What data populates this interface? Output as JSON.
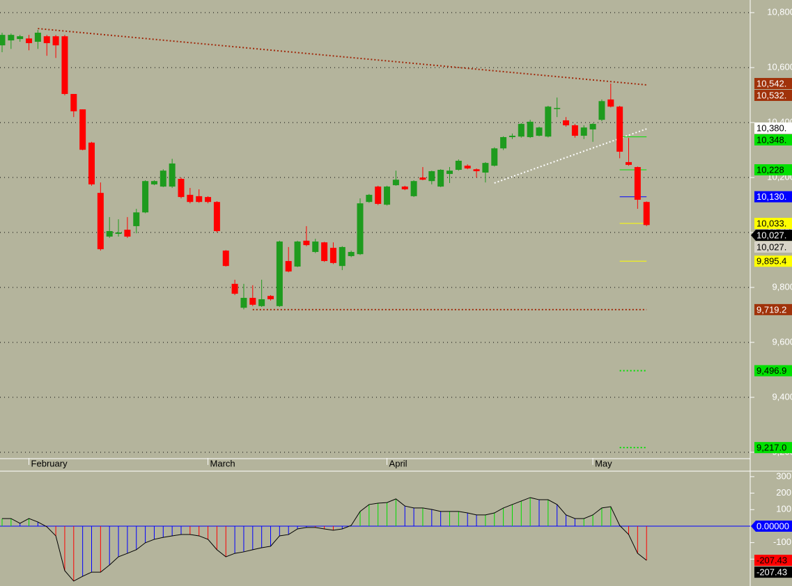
{
  "chart_data": [
    {
      "type": "candlestick",
      "categories": [
        null,
        null,
        null,
        "February",
        null,
        null,
        null,
        null,
        null,
        null,
        null,
        null,
        null,
        null,
        null,
        null,
        null,
        null,
        null,
        null,
        null,
        null,
        null,
        "March",
        null,
        null,
        null,
        null,
        null,
        null,
        null,
        null,
        null,
        null,
        null,
        null,
        null,
        null,
        null,
        null,
        null,
        null,
        null,
        "April",
        null,
        null,
        null,
        null,
        null,
        null,
        null,
        null,
        null,
        null,
        null,
        null,
        null,
        null,
        null,
        null,
        null,
        null,
        null,
        null,
        null,
        null,
        "May",
        null,
        null,
        null,
        null,
        null,
        null
      ],
      "open": [
        10681,
        10699,
        10704,
        10706,
        10694,
        10714,
        10714,
        10714,
        10504,
        10448,
        10327,
        10144,
        9985,
        9995,
        10010,
        10023,
        10073,
        10175,
        10167,
        10167,
        10195,
        10137,
        10132,
        10129,
        10111,
        9934,
        9813,
        9726,
        9762,
        9732,
        9769,
        9732,
        9896,
        9876,
        9970,
        9929,
        9964,
        9944,
        9878,
        9914,
        9921,
        10111,
        10167,
        10101,
        10172,
        10167,
        10132,
        10200,
        10187,
        10167,
        10213,
        10228,
        10243,
        10230,
        10218,
        10243,
        10306,
        10347,
        10349,
        10347,
        10352,
        10349,
        10451,
        10408,
        10390,
        10352,
        10375,
        10410,
        10484,
        10458,
        10256,
        10238,
        10111
      ],
      "high": [
        10727,
        10724,
        10719,
        10719,
        10737,
        10719,
        10719,
        10719,
        10504,
        10448,
        10330,
        10182,
        10056,
        10048,
        10056,
        10086,
        10190,
        10190,
        10230,
        10268,
        10200,
        10162,
        10157,
        10132,
        10114,
        9936,
        9828,
        9813,
        9808,
        9828,
        9772,
        9970,
        9947,
        9970,
        10023,
        9977,
        9966,
        9964,
        9950,
        9934,
        10124,
        10140,
        10170,
        10170,
        10225,
        10170,
        10190,
        10238,
        10225,
        10230,
        10238,
        10266,
        10248,
        10233,
        10256,
        10310,
        10350,
        10360,
        10398,
        10410,
        10385,
        10461,
        10491,
        10420,
        10395,
        10390,
        10398,
        10484,
        10542,
        10461,
        10344,
        10240,
        10113
      ],
      "low": [
        10656,
        10668,
        10694,
        10663,
        10668,
        10643,
        10635,
        10499,
        10420,
        10299,
        10170,
        9934,
        9980,
        9985,
        9980,
        9997,
        10070,
        10172,
        10165,
        10162,
        10124,
        10106,
        10108,
        10106,
        10000,
        9876,
        9772,
        9720,
        9732,
        9729,
        9752,
        9729,
        9855,
        9874,
        9950,
        9925,
        9893,
        9885,
        9863,
        9910,
        9918,
        10108,
        10100,
        10098,
        10170,
        10154,
        10129,
        10190,
        10175,
        10165,
        10180,
        10225,
        10230,
        10200,
        10182,
        10240,
        10300,
        10340,
        10345,
        10344,
        10350,
        10346,
        10420,
        10385,
        10345,
        10340,
        10330,
        10405,
        10455,
        10270,
        10243,
        10086,
        10023
      ],
      "close": [
        10719,
        10719,
        10714,
        10689,
        10727,
        10689,
        10681,
        10504,
        10441,
        10301,
        10175,
        9939,
        10005,
        10000,
        9985,
        10073,
        10187,
        10187,
        10225,
        10251,
        10129,
        10111,
        10111,
        10111,
        10005,
        9878,
        9777,
        9762,
        9737,
        9757,
        9757,
        9967,
        9858,
        9967,
        9954,
        9967,
        9896,
        9889,
        9947,
        9929,
        10106,
        10137,
        10104,
        10167,
        10192,
        10157,
        10187,
        10192,
        10223,
        10228,
        10225,
        10261,
        10233,
        10223,
        10253,
        10306,
        10347,
        10352,
        10395,
        10403,
        10382,
        10458,
        10453,
        10390,
        10352,
        10382,
        10395,
        10478,
        10458,
        10294,
        10246,
        10119,
        10027
      ],
      "up_color": "#1e9b1e",
      "down_color": "#ff0000",
      "ylim": [
        9187,
        10846
      ],
      "yticks": [
        {
          "value": 9200,
          "label": "9,200"
        },
        {
          "value": 9400,
          "label": "9,400"
        },
        {
          "value": 9600,
          "label": "9,600"
        },
        {
          "value": 9800,
          "label": "9,800"
        },
        {
          "value": 10000,
          "label": "10,000"
        },
        {
          "value": 10200,
          "label": "10,200"
        },
        {
          "value": 10400,
          "label": "10,400"
        },
        {
          "value": 10600,
          "label": "10,600"
        },
        {
          "value": 10800,
          "label": "10,800"
        }
      ],
      "grid": true,
      "lines": [
        {
          "x": [
            4,
            72
          ],
          "values": [
            10742,
            10537
          ],
          "color": "#a0280a",
          "style": "dotted"
        },
        {
          "x": [
            55,
            72
          ],
          "values": [
            10180,
            10377
          ],
          "color": "#ffffff",
          "style": "dotted"
        },
        {
          "x": [
            28,
            72
          ],
          "values": [
            9719.2,
            9719.2
          ],
          "color": "#a0280a",
          "style": "dotted"
        },
        {
          "x": [
            69,
            72
          ],
          "values": [
            10348,
            10348
          ],
          "color": "#00e000",
          "style": "solid"
        },
        {
          "x": [
            69,
            72
          ],
          "values": [
            10228,
            10228
          ],
          "color": "#00e000",
          "style": "solid"
        },
        {
          "x": [
            69,
            72
          ],
          "values": [
            10130,
            10130
          ],
          "color": "#0000ff",
          "style": "solid"
        },
        {
          "x": [
            69,
            72
          ],
          "values": [
            10033,
            10033
          ],
          "color": "#ffff00",
          "style": "solid"
        },
        {
          "x": [
            69,
            72
          ],
          "values": [
            9895.4,
            9895.4
          ],
          "color": "#ffff00",
          "style": "solid"
        },
        {
          "x": [
            69,
            72
          ],
          "values": [
            9496.9,
            9496.9
          ],
          "color": "#00e000",
          "style": "dotted"
        },
        {
          "x": [
            69,
            72
          ],
          "values": [
            9217.0,
            9217.0
          ],
          "color": "#00e000",
          "style": "dotted"
        }
      ],
      "badges": [
        {
          "value": 10542,
          "label": "10,542.",
          "fill": "#a0320a",
          "text_color": "#ffffff"
        },
        {
          "value": 10532,
          "label": "10,532.",
          "fill": "#a0320a",
          "text_color": "#ffffff"
        },
        {
          "value": 10380,
          "label": "10,380.",
          "fill": "#ffffff",
          "text_color": "#000000"
        },
        {
          "value": 10348,
          "label": "10,348.",
          "fill": "#00e000",
          "text_color": "#000000"
        },
        {
          "value": 10228,
          "label": "10,228",
          "fill": "#00e000",
          "text_color": "#000000"
        },
        {
          "value": 10130,
          "label": "10,130.",
          "fill": "#0000ff",
          "text_color": "#ffffff"
        },
        {
          "value": 10033,
          "label": "10,033.",
          "fill": "#ffff00",
          "text_color": "#000000"
        },
        {
          "value": 10027,
          "label": "10,027.",
          "fill": "#000000",
          "text_color": "#ffffff",
          "arrow": true
        },
        {
          "value": 10027,
          "label": "10,027.",
          "fill": "#d8d4c8",
          "text_color": "#000000"
        },
        {
          "value": 9895.4,
          "label": "9,895.4",
          "fill": "#ffff00",
          "text_color": "#000000"
        },
        {
          "value": 9719.2,
          "label": "9,719.2",
          "fill": "#a0320a",
          "text_color": "#ffffff"
        },
        {
          "value": 9496.9,
          "label": "9,496.9",
          "fill": "#00e000",
          "text_color": "#000000"
        },
        {
          "value": 9217.0,
          "label": "9,217.0",
          "fill": "#00e000",
          "text_color": "#000000"
        }
      ]
    },
    {
      "type": "oscillator",
      "values": [
        46,
        46,
        17,
        46,
        25,
        -4,
        -59,
        -270,
        -333,
        -304,
        -279,
        -279,
        -236,
        -186,
        -165,
        -143,
        -101,
        -80,
        -68,
        -59,
        -51,
        -51,
        -59,
        -80,
        -143,
        -186,
        -165,
        -156,
        -143,
        -131,
        -122,
        -59,
        -51,
        -17,
        -8,
        -8,
        -17,
        -25,
        -17,
        4,
        89,
        131,
        139,
        143,
        165,
        122,
        110,
        110,
        101,
        89,
        89,
        89,
        80,
        68,
        68,
        80,
        110,
        131,
        152,
        173,
        160,
        160,
        131,
        68,
        46,
        46,
        68,
        110,
        118,
        4,
        -51,
        -165,
        -207.43
      ],
      "up_color": "#00dd00",
      "down_color": "#ff0000",
      "flat_color": "#0000ff",
      "line_color": "#000000",
      "ylim": [
        -363,
        329
      ],
      "yticks": [
        -200,
        -100,
        100,
        200,
        300
      ],
      "badges": [
        {
          "value": 0,
          "label": "0.00000",
          "fill": "#0000ff",
          "text_color": "#ffffff",
          "arrow": true
        },
        {
          "value": -207.43,
          "label": "-207.43",
          "fill": "#ff0000",
          "text_color": "#000000"
        },
        {
          "value": -207.43,
          "label": "-207.43",
          "fill": "#000000",
          "text_color": "#ffffff"
        }
      ]
    }
  ]
}
